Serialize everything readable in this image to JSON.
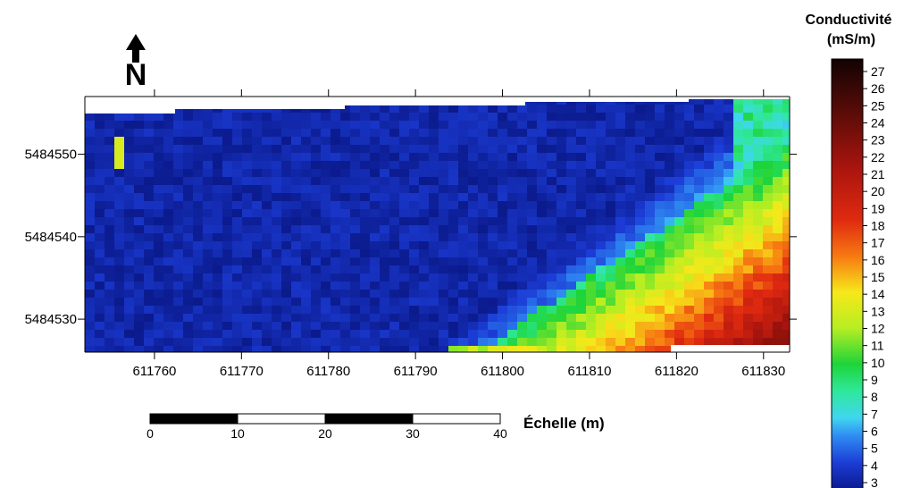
{
  "chart_data": {
    "type": "heatmap",
    "title": "",
    "x": {
      "ticks": [
        611760,
        611770,
        611780,
        611790,
        611800,
        611810,
        611820,
        611830
      ],
      "range": [
        611752,
        611833
      ]
    },
    "y": {
      "ticks": [
        5484530,
        5484540,
        5484550
      ],
      "range": [
        5484526,
        5484557
      ]
    },
    "colorbar": {
      "title_line1": "Conductivité",
      "title_line2": "(mS/m)",
      "min": 3,
      "max": 27,
      "ticks": [
        3,
        4,
        5,
        6,
        7,
        8,
        9,
        10,
        11,
        12,
        13,
        14,
        15,
        16,
        17,
        18,
        19,
        20,
        21,
        22,
        23,
        24,
        25,
        26,
        27
      ],
      "stops": [
        {
          "v": 3,
          "color": "#0b1a8c"
        },
        {
          "v": 4.5,
          "color": "#1c3cd6"
        },
        {
          "v": 6,
          "color": "#2f8cf2"
        },
        {
          "v": 7,
          "color": "#3fd6f0"
        },
        {
          "v": 8.5,
          "color": "#2fe89a"
        },
        {
          "v": 10,
          "color": "#1ed43a"
        },
        {
          "v": 12,
          "color": "#b6ee22"
        },
        {
          "v": 14,
          "color": "#f7e81a"
        },
        {
          "v": 16,
          "color": "#f77a12"
        },
        {
          "v": 18,
          "color": "#e02a10"
        },
        {
          "v": 21,
          "color": "#a8140e"
        },
        {
          "v": 24,
          "color": "#5a0c08"
        },
        {
          "v": 27,
          "color": "#120303"
        }
      ]
    },
    "scale_bar": {
      "ticks": [
        "0",
        "10",
        "20",
        "30",
        "40"
      ],
      "label": "Échelle (m)"
    },
    "north_arrow": "N"
  }
}
